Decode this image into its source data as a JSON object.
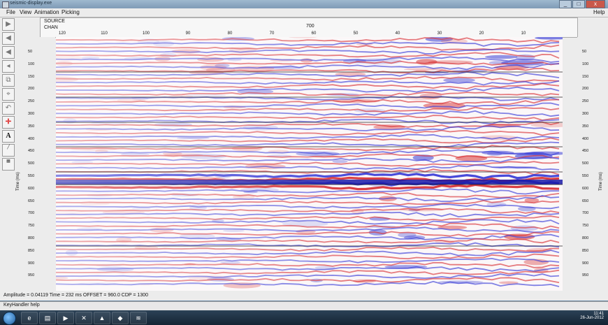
{
  "window": {
    "title": "seismic-display.exe",
    "controls": [
      "_",
      "□",
      "x"
    ]
  },
  "menu": {
    "items": [
      "File",
      "View",
      "Animation",
      "Picking"
    ],
    "help": "Help"
  },
  "header": {
    "source_label": "SOURCE",
    "chan_label": "CHAN",
    "source_value": "700"
  },
  "x_ticks": [
    "120",
    "110",
    "100",
    "90",
    "80",
    "70",
    "60",
    "50",
    "40",
    "30",
    "20",
    "10"
  ],
  "y_ticks_left": [
    "50",
    "100",
    "150",
    "200",
    "250",
    "300",
    "350",
    "400",
    "450",
    "500",
    "550",
    "600",
    "650",
    "700",
    "750",
    "800",
    "850",
    "900",
    "950"
  ],
  "y_ticks_right": [
    "50",
    "100",
    "150",
    "200",
    "250",
    "300",
    "350",
    "400",
    "450",
    "500",
    "550",
    "600",
    "650",
    "700",
    "750",
    "800",
    "850",
    "900",
    "950"
  ],
  "y_title": "Time (ms)",
  "status": "Amplitude = 0.04119   Time = 232 ms   OFFSET = 960.0   CDP = 1300",
  "key_handler": "KeyHandler help",
  "toolbar_icons": [
    "arrow-right-icon",
    "arrow-left-icon",
    "arrow-left-alt-icon",
    "arrow-left-small-icon",
    "window-icon",
    "pick-icon",
    "undo-icon",
    "crosshair-icon",
    "text-icon",
    "line-tool-icon",
    "grid-tool-icon"
  ],
  "taskbar": {
    "time": "11:41",
    "date": "26-Jun-2012",
    "apps": [
      "ie-icon",
      "explorer-icon",
      "media-icon",
      "tool-icon",
      "pdf-icon",
      "analyzer-icon",
      "seismic-icon"
    ]
  }
}
